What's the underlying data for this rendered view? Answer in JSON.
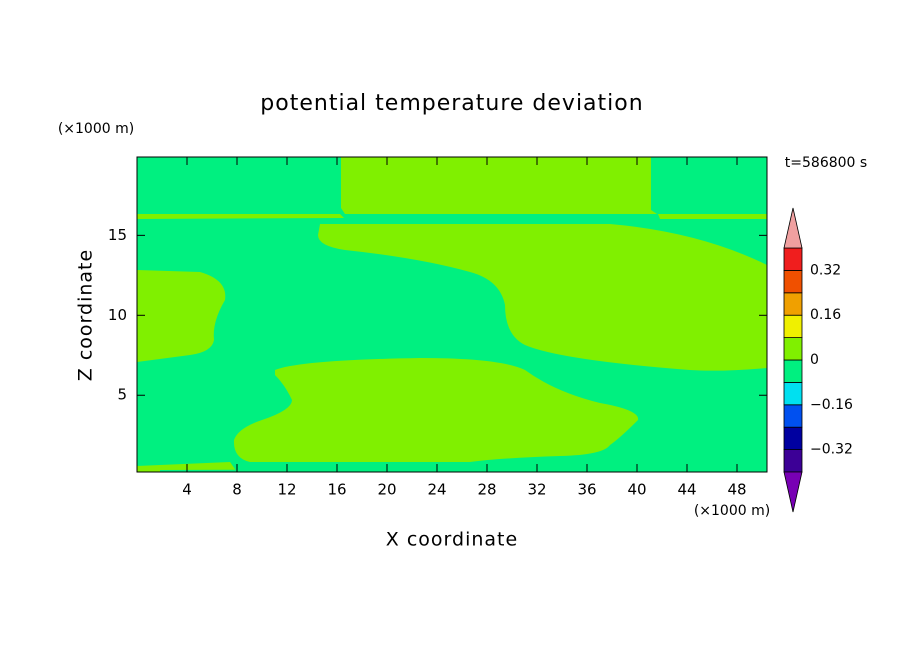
{
  "chart_data": {
    "type": "contour",
    "title": "potential temperature deviation",
    "x_label": "X coordinate",
    "y_label": "Z coordinate",
    "x_unit": "(×1000 m)",
    "y_unit": "(×1000 m)",
    "annotation": "t=586800 s",
    "xlim": [
      0,
      50.4
    ],
    "xticks": [
      4,
      8,
      12,
      16,
      20,
      24,
      28,
      32,
      36,
      40,
      44,
      48
    ],
    "ylim": [
      0.2,
      19.9
    ],
    "yticks": [
      5,
      10,
      15
    ],
    "colorbar": {
      "levels": [
        -0.4,
        -0.32,
        -0.24,
        -0.16,
        -0.08,
        0,
        0.08,
        0.16,
        0.24,
        0.32,
        0.4
      ],
      "colors": [
        "#7800b4",
        "#3c0096",
        "#0000a0",
        "#0050f0",
        "#00e0f0",
        "#00f080",
        "#80f000",
        "#f0f000",
        "#f0a000",
        "#f05000",
        "#f01e1e",
        "#f0a0a0"
      ],
      "ticks": [
        {
          "value": -0.32,
          "label": "−0.32"
        },
        {
          "value": -0.16,
          "label": "−0.16"
        },
        0,
        0.16,
        0.32
      ]
    }
  }
}
